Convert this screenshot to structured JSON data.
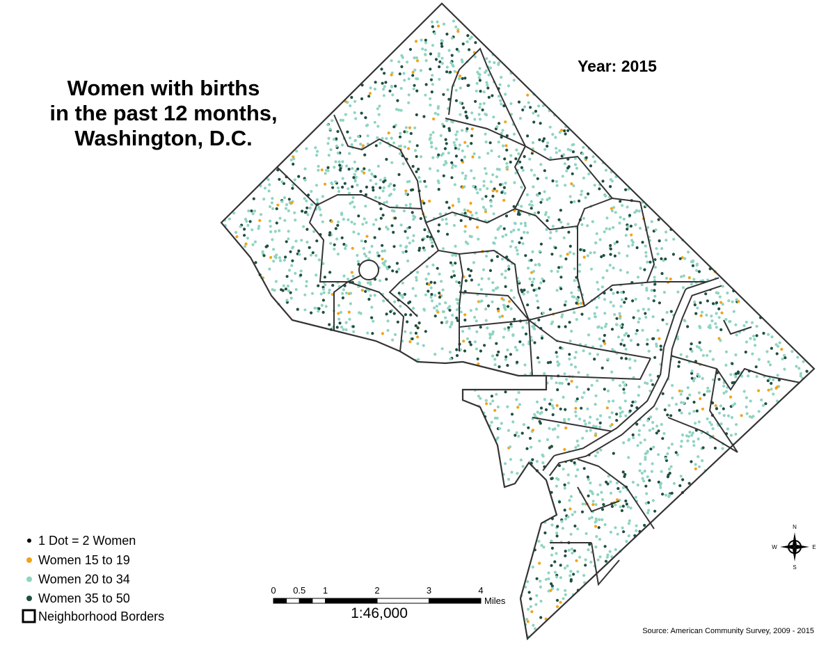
{
  "title": {
    "lines": [
      "Women with births",
      "in the past 12 months,",
      "Washington, D.C."
    ]
  },
  "year": "Year: 2015",
  "legend": {
    "note": "1 Dot = 2 Women",
    "items": [
      {
        "label": "Women 15 to 19",
        "color": "#f2a31b"
      },
      {
        "label": "Women 20 to 34",
        "color": "#8fd4c2"
      },
      {
        "label": "Women 35 to 50",
        "color": "#1f4f40"
      }
    ],
    "border": "Neighborhood Borders"
  },
  "scale": {
    "ticks": [
      0,
      0.5,
      1,
      2,
      3,
      4
    ],
    "unit": "Miles",
    "ratio": "1:46,000"
  },
  "compass": {
    "n": "N",
    "s": "S",
    "e": "E",
    "w": "W"
  },
  "source": "Source: American Community Survey, 2009 - 2015"
}
